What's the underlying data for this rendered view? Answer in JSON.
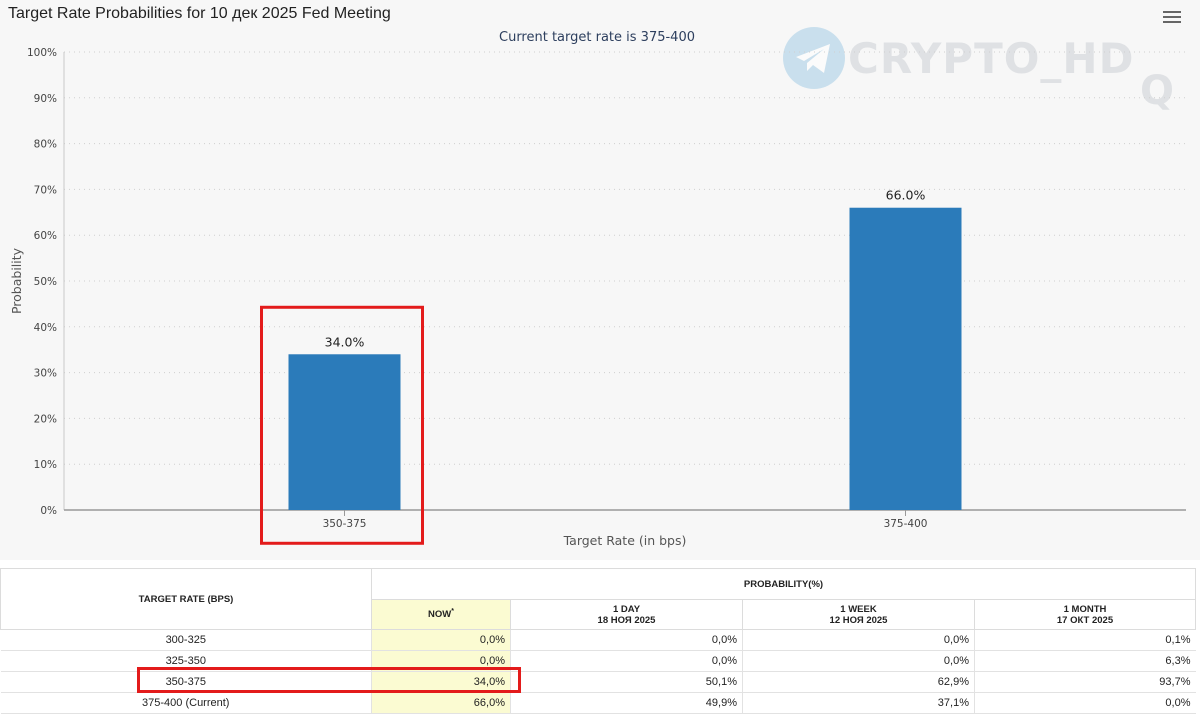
{
  "chart": {
    "title": "Target Rate Probabilities for 10 дек 2025 Fed Meeting",
    "subtitle": "Current target rate is 375-400",
    "watermark": "CRYPTO_HD"
  },
  "chart_data": {
    "type": "bar",
    "title": "Target Rate Probabilities for 10 дек 2025 Fed Meeting",
    "subtitle": "Current target rate is 375-400",
    "categories": [
      "350-375",
      "375-400"
    ],
    "values": [
      34.0,
      66.0
    ],
    "data_labels": [
      "34.0%",
      "66.0%"
    ],
    "xlabel": "Target Rate (in bps)",
    "ylabel": "Probability",
    "ylim": [
      0,
      100
    ],
    "yticks": [
      "0%",
      "10%",
      "20%",
      "30%",
      "40%",
      "50%",
      "60%",
      "70%",
      "80%",
      "90%",
      "100%"
    ],
    "grid": true,
    "bar_color": "#2b7bba",
    "highlighted_category": "350-375",
    "highlight_color": "#e31b1b"
  },
  "table": {
    "col_rate_header": "TARGET RATE (BPS)",
    "group_header": "PROBABILITY(%)",
    "now_header": "NOW",
    "now_marker": "*",
    "columns": [
      {
        "line1": "1 DAY",
        "line2": "18 НОЯ 2025"
      },
      {
        "line1": "1 WEEK",
        "line2": "12 НОЯ 2025"
      },
      {
        "line1": "1 MONTH",
        "line2": "17 ОКТ 2025"
      }
    ],
    "rows": [
      {
        "rate": "300-325",
        "values": [
          "0,0%",
          "0,0%",
          "0,0%",
          "0,1%"
        ]
      },
      {
        "rate": "325-350",
        "values": [
          "0,0%",
          "0,0%",
          "0,0%",
          "6,3%"
        ]
      },
      {
        "rate": "350-375",
        "values": [
          "34,0%",
          "50,1%",
          "62,9%",
          "93,7%"
        ]
      },
      {
        "rate": "375-400 (Current)",
        "values": [
          "66,0%",
          "49,9%",
          "37,1%",
          "0,0%"
        ]
      }
    ],
    "highlighted_row": 2
  }
}
